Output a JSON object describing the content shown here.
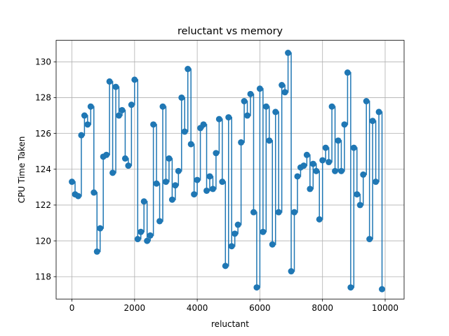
{
  "chart_data": {
    "type": "line",
    "style": "step-with-markers",
    "title": "reluctant vs memory",
    "xlabel": "reluctant",
    "ylabel": "CPU Time Taken",
    "xlim": [
      -505,
      10605
    ],
    "ylim": [
      116.75,
      131.2
    ],
    "xticks": [
      0,
      2000,
      4000,
      6000,
      8000,
      10000
    ],
    "xtick_labels": [
      "0",
      "2000",
      "4000",
      "6000",
      "8000",
      "10000"
    ],
    "yticks": [
      118,
      120,
      122,
      124,
      126,
      128,
      130
    ],
    "ytick_labels": [
      "118",
      "120",
      "122",
      "124",
      "126",
      "128",
      "130"
    ],
    "grid": true,
    "series_color": "#1f77b4",
    "series": [
      {
        "x": [
          0,
          100,
          200,
          300,
          400,
          500,
          600,
          700,
          800,
          900,
          1000,
          1100,
          1200,
          1300,
          1400,
          1500,
          1600,
          1700,
          1800,
          1900,
          2000,
          2100,
          2200,
          2300,
          2400,
          2500,
          2600,
          2700,
          2800,
          2900,
          3000,
          3100,
          3200,
          3300,
          3400,
          3500,
          3600,
          3700,
          3800,
          3900,
          4000,
          4100,
          4200,
          4300,
          4400,
          4500,
          4600,
          4700,
          4800,
          4900,
          5000,
          5100,
          5200,
          5300,
          5400,
          5500,
          5600,
          5700,
          5800,
          5900,
          6000,
          6100,
          6200,
          6300,
          6400,
          6500,
          6600,
          6700,
          6800,
          6900,
          7000,
          7100,
          7200,
          7300,
          7400,
          7500,
          7600,
          7700,
          7800,
          7900,
          8000,
          8100,
          8200,
          8300,
          8400,
          8500,
          8600,
          8700,
          8800,
          8900,
          9000,
          9100,
          9200,
          9300,
          9400,
          9500,
          9600,
          9700,
          9800,
          9900
        ],
        "values": [
          123.3,
          122.6,
          122.5,
          125.9,
          127.0,
          126.5,
          127.5,
          122.7,
          119.4,
          120.7,
          124.7,
          124.8,
          128.9,
          123.8,
          128.6,
          127.0,
          127.3,
          124.6,
          124.2,
          127.6,
          129.0,
          120.1,
          120.5,
          122.2,
          120.0,
          120.3,
          126.5,
          123.2,
          121.1,
          127.5,
          123.3,
          124.6,
          122.3,
          123.1,
          123.9,
          128.0,
          126.1,
          129.6,
          125.4,
          122.6,
          123.4,
          126.3,
          126.5,
          122.8,
          123.6,
          122.9,
          124.9,
          126.8,
          123.3,
          118.6,
          126.9,
          119.7,
          120.4,
          120.9,
          125.5,
          127.8,
          127.0,
          128.2,
          121.6,
          117.4,
          128.5,
          120.5,
          127.5,
          125.6,
          119.8,
          127.2,
          121.6,
          128.7,
          128.3,
          130.5,
          118.3,
          121.6,
          123.6,
          124.1,
          124.2,
          124.8,
          122.9,
          124.3,
          123.9,
          121.2,
          124.5,
          125.2,
          124.4,
          127.5,
          123.9,
          125.6,
          123.9,
          126.5,
          129.4,
          117.4,
          125.2,
          122.6,
          122.0,
          123.7,
          127.8,
          120.1,
          126.7,
          123.3,
          127.2,
          117.3
        ]
      }
    ]
  }
}
